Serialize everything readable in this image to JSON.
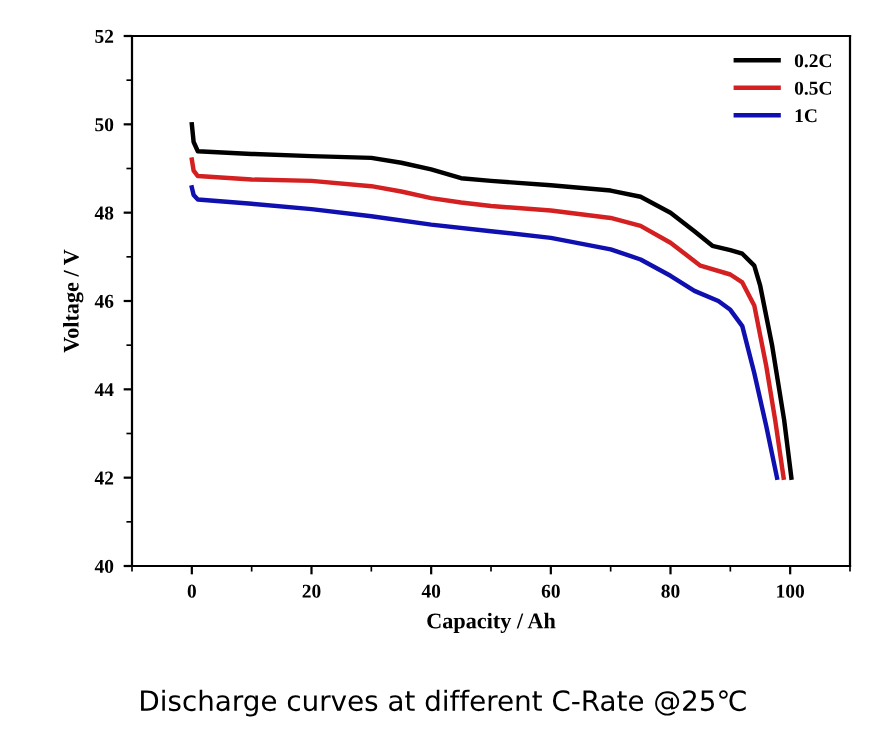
{
  "chart_data": {
    "type": "line",
    "xlabel": "Capacity / Ah",
    "ylabel": "Voltage / V",
    "annotations": [
      "Discharge curves at different C-Rate @25℃"
    ],
    "xlim": [
      -10,
      110
    ],
    "xticks": [
      0,
      20,
      40,
      60,
      80,
      100
    ],
    "ylim": [
      40,
      52
    ],
    "yticks": [
      40,
      42,
      44,
      46,
      48,
      50,
      52
    ],
    "grid": false,
    "legend": "top right",
    "marker": "none",
    "line_style": "solid",
    "series": [
      {
        "name": "0.2C",
        "color": "#000000",
        "x": [
          0,
          0.3,
          1,
          10,
          20,
          30,
          35,
          40,
          45,
          50,
          60,
          70,
          75,
          80,
          84,
          87,
          90,
          92,
          94,
          95,
          97,
          99,
          100.2
        ],
        "values": [
          50.0,
          49.6,
          49.39,
          49.33,
          49.28,
          49.24,
          49.13,
          48.98,
          48.78,
          48.72,
          48.62,
          48.5,
          48.36,
          48.0,
          47.58,
          47.25,
          47.15,
          47.07,
          46.8,
          46.34,
          44.98,
          43.3,
          42.0
        ]
      },
      {
        "name": "0.5C",
        "color": "#d42020",
        "x": [
          0,
          0.3,
          1,
          10,
          20,
          30,
          35,
          40,
          45,
          50,
          60,
          70,
          75,
          80,
          85,
          90,
          92,
          94,
          96,
          97.5,
          98.9
        ],
        "values": [
          49.2,
          48.95,
          48.83,
          48.75,
          48.72,
          48.6,
          48.48,
          48.33,
          48.23,
          48.15,
          48.05,
          47.88,
          47.7,
          47.32,
          46.8,
          46.6,
          46.42,
          45.9,
          44.53,
          43.3,
          42.0
        ]
      },
      {
        "name": "1C",
        "color": "#1010b0",
        "x": [
          0,
          0.3,
          1,
          10,
          20,
          30,
          40,
          50,
          60,
          70,
          75,
          80,
          84,
          88,
          90,
          92,
          94,
          96,
          97.8
        ],
        "values": [
          48.57,
          48.4,
          48.3,
          48.2,
          48.08,
          47.92,
          47.73,
          47.58,
          47.43,
          47.17,
          46.94,
          46.57,
          46.23,
          46.0,
          45.8,
          45.43,
          44.37,
          43.17,
          42.0
        ]
      }
    ]
  }
}
